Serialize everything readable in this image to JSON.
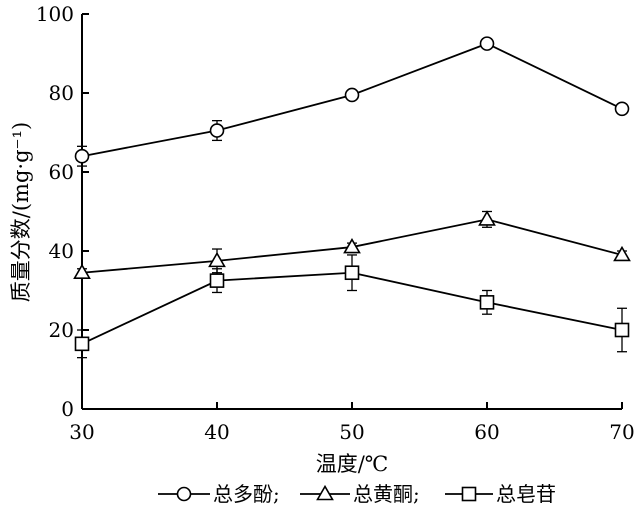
{
  "chart_data": {
    "type": "line",
    "x": [
      30,
      40,
      50,
      60,
      70
    ],
    "xlim": [
      30,
      70
    ],
    "ylim": [
      0,
      100
    ],
    "xticks": [
      30,
      40,
      50,
      60,
      70
    ],
    "yticks": [
      0,
      20,
      40,
      60,
      80,
      100
    ],
    "xlabel": "温度/℃",
    "ylabel": "质量分数/(mg·g⁻¹)",
    "grid": false,
    "legend_position": "bottom",
    "series": [
      {
        "name": "总多酚;",
        "marker": "circle",
        "values": [
          64,
          70.5,
          79.5,
          92.5,
          76
        ],
        "errors": [
          2.5,
          2.5,
          1.0,
          1.2,
          1.2
        ]
      },
      {
        "name": "总黄酮;",
        "marker": "triangle",
        "values": [
          34.5,
          37.5,
          41,
          48,
          39
        ],
        "errors": [
          1.0,
          3.0,
          1.0,
          2.0,
          1.0
        ]
      },
      {
        "name": "总皂苷",
        "marker": "square",
        "values": [
          16.5,
          32.5,
          34.5,
          27,
          20
        ],
        "errors": [
          3.5,
          3.0,
          4.5,
          3.0,
          5.5
        ]
      }
    ]
  }
}
